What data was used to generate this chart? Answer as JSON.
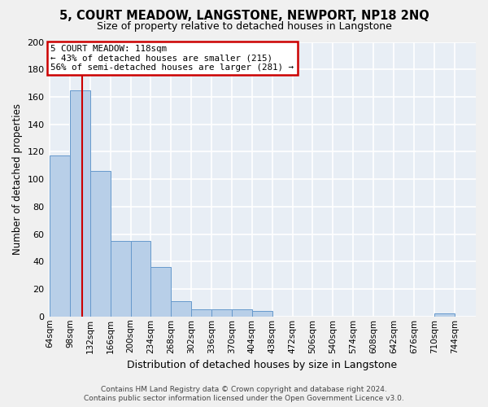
{
  "title": "5, COURT MEADOW, LANGSTONE, NEWPORT, NP18 2NQ",
  "subtitle": "Size of property relative to detached houses in Langstone",
  "xlabel": "Distribution of detached houses by size in Langstone",
  "ylabel": "Number of detached properties",
  "footer_line1": "Contains HM Land Registry data © Crown copyright and database right 2024.",
  "footer_line2": "Contains public sector information licensed under the Open Government Licence v3.0.",
  "categories": [
    "64sqm",
    "98sqm",
    "132sqm",
    "166sqm",
    "200sqm",
    "234sqm",
    "268sqm",
    "302sqm",
    "336sqm",
    "370sqm",
    "404sqm",
    "438sqm",
    "472sqm",
    "506sqm",
    "540sqm",
    "574sqm",
    "608sqm",
    "642sqm",
    "676sqm",
    "710sqm",
    "744sqm"
  ],
  "values": [
    117,
    165,
    106,
    55,
    55,
    36,
    11,
    5,
    5,
    5,
    4,
    0,
    0,
    0,
    0,
    0,
    0,
    0,
    0,
    2,
    0
  ],
  "bar_color": "#b8cfe8",
  "bar_edge_color": "#6699cc",
  "bg_color": "#e8eef5",
  "grid_color": "#ffffff",
  "annotation_text": "5 COURT MEADOW: 118sqm\n← 43% of detached houses are smaller (215)\n56% of semi-detached houses are larger (281) →",
  "annotation_box_color": "#ffffff",
  "annotation_box_edge": "#cc0000",
  "redline_x": 118,
  "redline_color": "#cc0000",
  "ylim": [
    0,
    200
  ],
  "yticks": [
    0,
    20,
    40,
    60,
    80,
    100,
    120,
    140,
    160,
    180,
    200
  ],
  "bin_width": 34,
  "fig_bg": "#f0f0f0"
}
